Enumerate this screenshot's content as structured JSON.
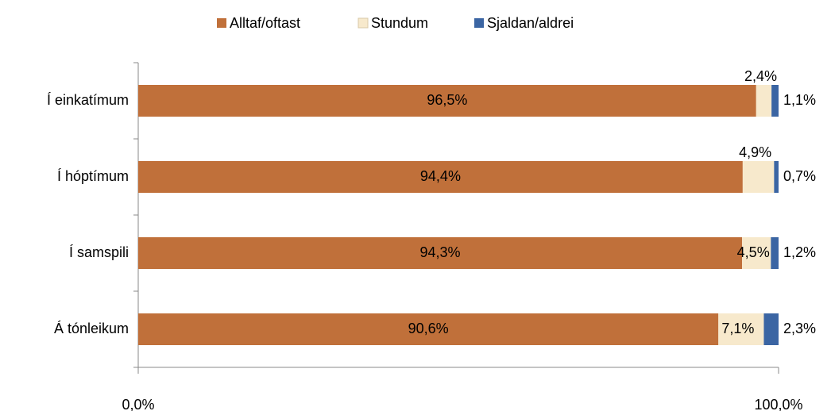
{
  "chart_data": {
    "type": "stacked_barh",
    "categories": [
      "Í einkatímum",
      "Í hóptímum",
      "Í samspili",
      "Á tónleikum"
    ],
    "series": [
      {
        "name": "Alltaf/oftast",
        "color": "#c0703a",
        "values": [
          96.5,
          94.4,
          94.3,
          90.6
        ],
        "value_labels": [
          "96,5%",
          "94,4%",
          "94,3%",
          "90,6%"
        ]
      },
      {
        "name": "Stundum",
        "color": "#f7e9cc",
        "values": [
          2.4,
          4.9,
          4.5,
          7.1
        ],
        "value_labels": [
          "2,4%",
          "4,9%",
          "4,5%",
          "7,1%"
        ]
      },
      {
        "name": "Sjaldan/aldrei",
        "color": "#3b65a3",
        "values": [
          1.1,
          0.7,
          1.2,
          2.3
        ],
        "value_labels": [
          "1,1%",
          "0,7%",
          "1,2%",
          "2,3%"
        ]
      }
    ],
    "xlim": [
      0,
      100
    ],
    "xticks": [
      {
        "value": 0,
        "label": "0,0%"
      },
      {
        "value": 100,
        "label": "100,0%"
      }
    ],
    "legend": "top"
  }
}
